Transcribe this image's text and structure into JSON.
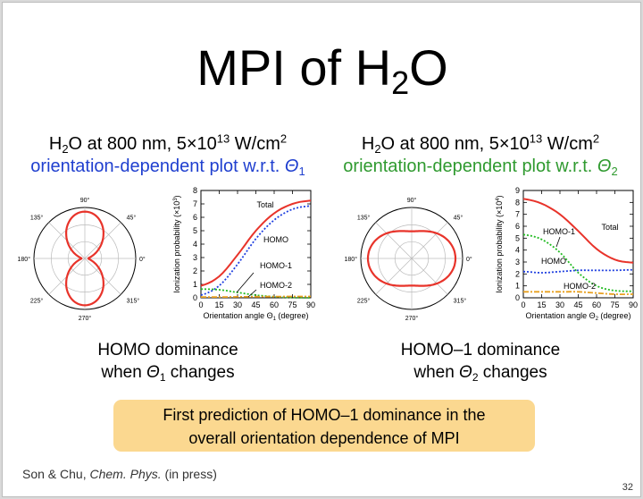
{
  "slide": {
    "title_prefix": "MPI of H",
    "title_sub": "2",
    "title_suffix": "O",
    "page_number": "32",
    "left": {
      "cond_h": "H",
      "cond_sub": "2",
      "cond_text": "O at 800 nm, 5×10",
      "cond_exp": "13",
      "cond_unit": " W/cm",
      "cond_unit_exp": "2",
      "subtitle_text": "orientation-dependent plot w.r.t. ",
      "subtitle_theta": "Θ",
      "subtitle_sub": "1",
      "conclusion_line1": "HOMO dominance",
      "conclusion_line2_a": "when ",
      "conclusion_theta": "Θ",
      "conclusion_sub": "1",
      "conclusion_line2_b": " changes"
    },
    "right": {
      "cond_h": "H",
      "cond_sub": "2",
      "cond_text": "O at 800 nm, 5×10",
      "cond_exp": "13",
      "cond_unit": " W/cm",
      "cond_unit_exp": "2",
      "subtitle_text": "orientation-dependent plot w.r.t. ",
      "subtitle_theta": "Θ",
      "subtitle_sub": "2",
      "conclusion_line1": "HOMO–1 dominance",
      "conclusion_line2_a": "when ",
      "conclusion_theta": "Θ",
      "conclusion_sub": "2",
      "conclusion_line2_b": " changes"
    },
    "highlight_line1": "First prediction of HOMO–1 dominance in the",
    "highlight_line2": "overall orientation dependence of MPI",
    "citation_authors": "Son & Chu, ",
    "citation_journal": "Chem. Phys.",
    "citation_note": " (in press)",
    "colors": {
      "accent_blue": "#1f3fcf",
      "accent_green": "#2f9a2f",
      "highlight_bg": "#fbd890"
    }
  },
  "chart_data": [
    {
      "type": "polar",
      "angle_labels": [
        "90°",
        "45°",
        "0°",
        "315°",
        "270°",
        "225°",
        "180°",
        "135°"
      ],
      "series": [
        {
          "shape": "lobes-along-90-270",
          "color": "#e8332a"
        }
      ]
    },
    {
      "type": "line",
      "xlabel": "Orientation angle Θ",
      "xlabel_sub": "1",
      "xlabel_unit": " (degree)",
      "ylabel": "Ionization probability (×10",
      "ylabel_exp": "3",
      "ylabel_close": ")",
      "xlim": [
        0,
        90
      ],
      "ylim": [
        0,
        8
      ],
      "xticks": [
        0,
        15,
        30,
        45,
        60,
        75,
        90
      ],
      "yticks": [
        0,
        1,
        2,
        3,
        4,
        5,
        6,
        7,
        8
      ],
      "x": [
        0,
        15,
        30,
        45,
        60,
        75,
        90
      ],
      "series": [
        {
          "label": "Total",
          "color": "#e8332a",
          "style": "solid",
          "values": [
            0.9,
            1.6,
            3.2,
            5.0,
            6.3,
            7.0,
            7.25
          ]
        },
        {
          "label": "HOMO",
          "color": "#2040e0",
          "style": "dotted",
          "values": [
            0.2,
            0.9,
            2.5,
            4.4,
            5.8,
            6.6,
            6.85
          ]
        },
        {
          "label": "HOMO-1",
          "color": "#22bb22",
          "style": "dotted",
          "values": [
            0.65,
            0.6,
            0.4,
            0.2,
            0.08,
            0.02,
            0.0
          ]
        },
        {
          "label": "HOMO-2",
          "color": "#e8a020",
          "style": "dashdot",
          "values": [
            0.06,
            0.06,
            0.07,
            0.08,
            0.09,
            0.1,
            0.1
          ]
        }
      ]
    },
    {
      "type": "polar",
      "angle_labels": [
        "90°",
        "45°",
        "0°",
        "315°",
        "270°",
        "225°",
        "180°",
        "135°"
      ],
      "series": [
        {
          "shape": "peanut-along-0-180",
          "color": "#e8332a"
        }
      ]
    },
    {
      "type": "line",
      "xlabel": "Orientation angle Θ",
      "xlabel_sub": "2",
      "xlabel_unit": " (degree)",
      "ylabel": "Ionization probability (×10",
      "ylabel_exp": "4",
      "ylabel_close": ")",
      "xlim": [
        0,
        90
      ],
      "ylim": [
        0,
        9
      ],
      "xticks": [
        0,
        15,
        30,
        45,
        60,
        75,
        90
      ],
      "yticks": [
        0,
        1,
        2,
        3,
        4,
        5,
        6,
        7,
        8,
        9
      ],
      "x": [
        0,
        15,
        30,
        45,
        60,
        75,
        90
      ],
      "series": [
        {
          "label": "Total",
          "color": "#e8332a",
          "style": "solid",
          "values": [
            8.3,
            7.9,
            7.0,
            5.6,
            4.1,
            3.2,
            2.95
          ]
        },
        {
          "label": "HOMO-1",
          "color": "#22bb22",
          "style": "dotted",
          "values": [
            5.3,
            4.9,
            3.8,
            2.1,
            1.0,
            0.6,
            0.55
          ]
        },
        {
          "label": "HOMO",
          "color": "#2040e0",
          "style": "dotted",
          "values": [
            2.2,
            2.1,
            2.2,
            2.3,
            2.3,
            2.3,
            2.35
          ]
        },
        {
          "label": "HOMO-2",
          "color": "#e8a020",
          "style": "dashdot",
          "values": [
            0.5,
            0.5,
            0.5,
            0.5,
            0.4,
            0.3,
            0.3
          ]
        }
      ]
    }
  ]
}
